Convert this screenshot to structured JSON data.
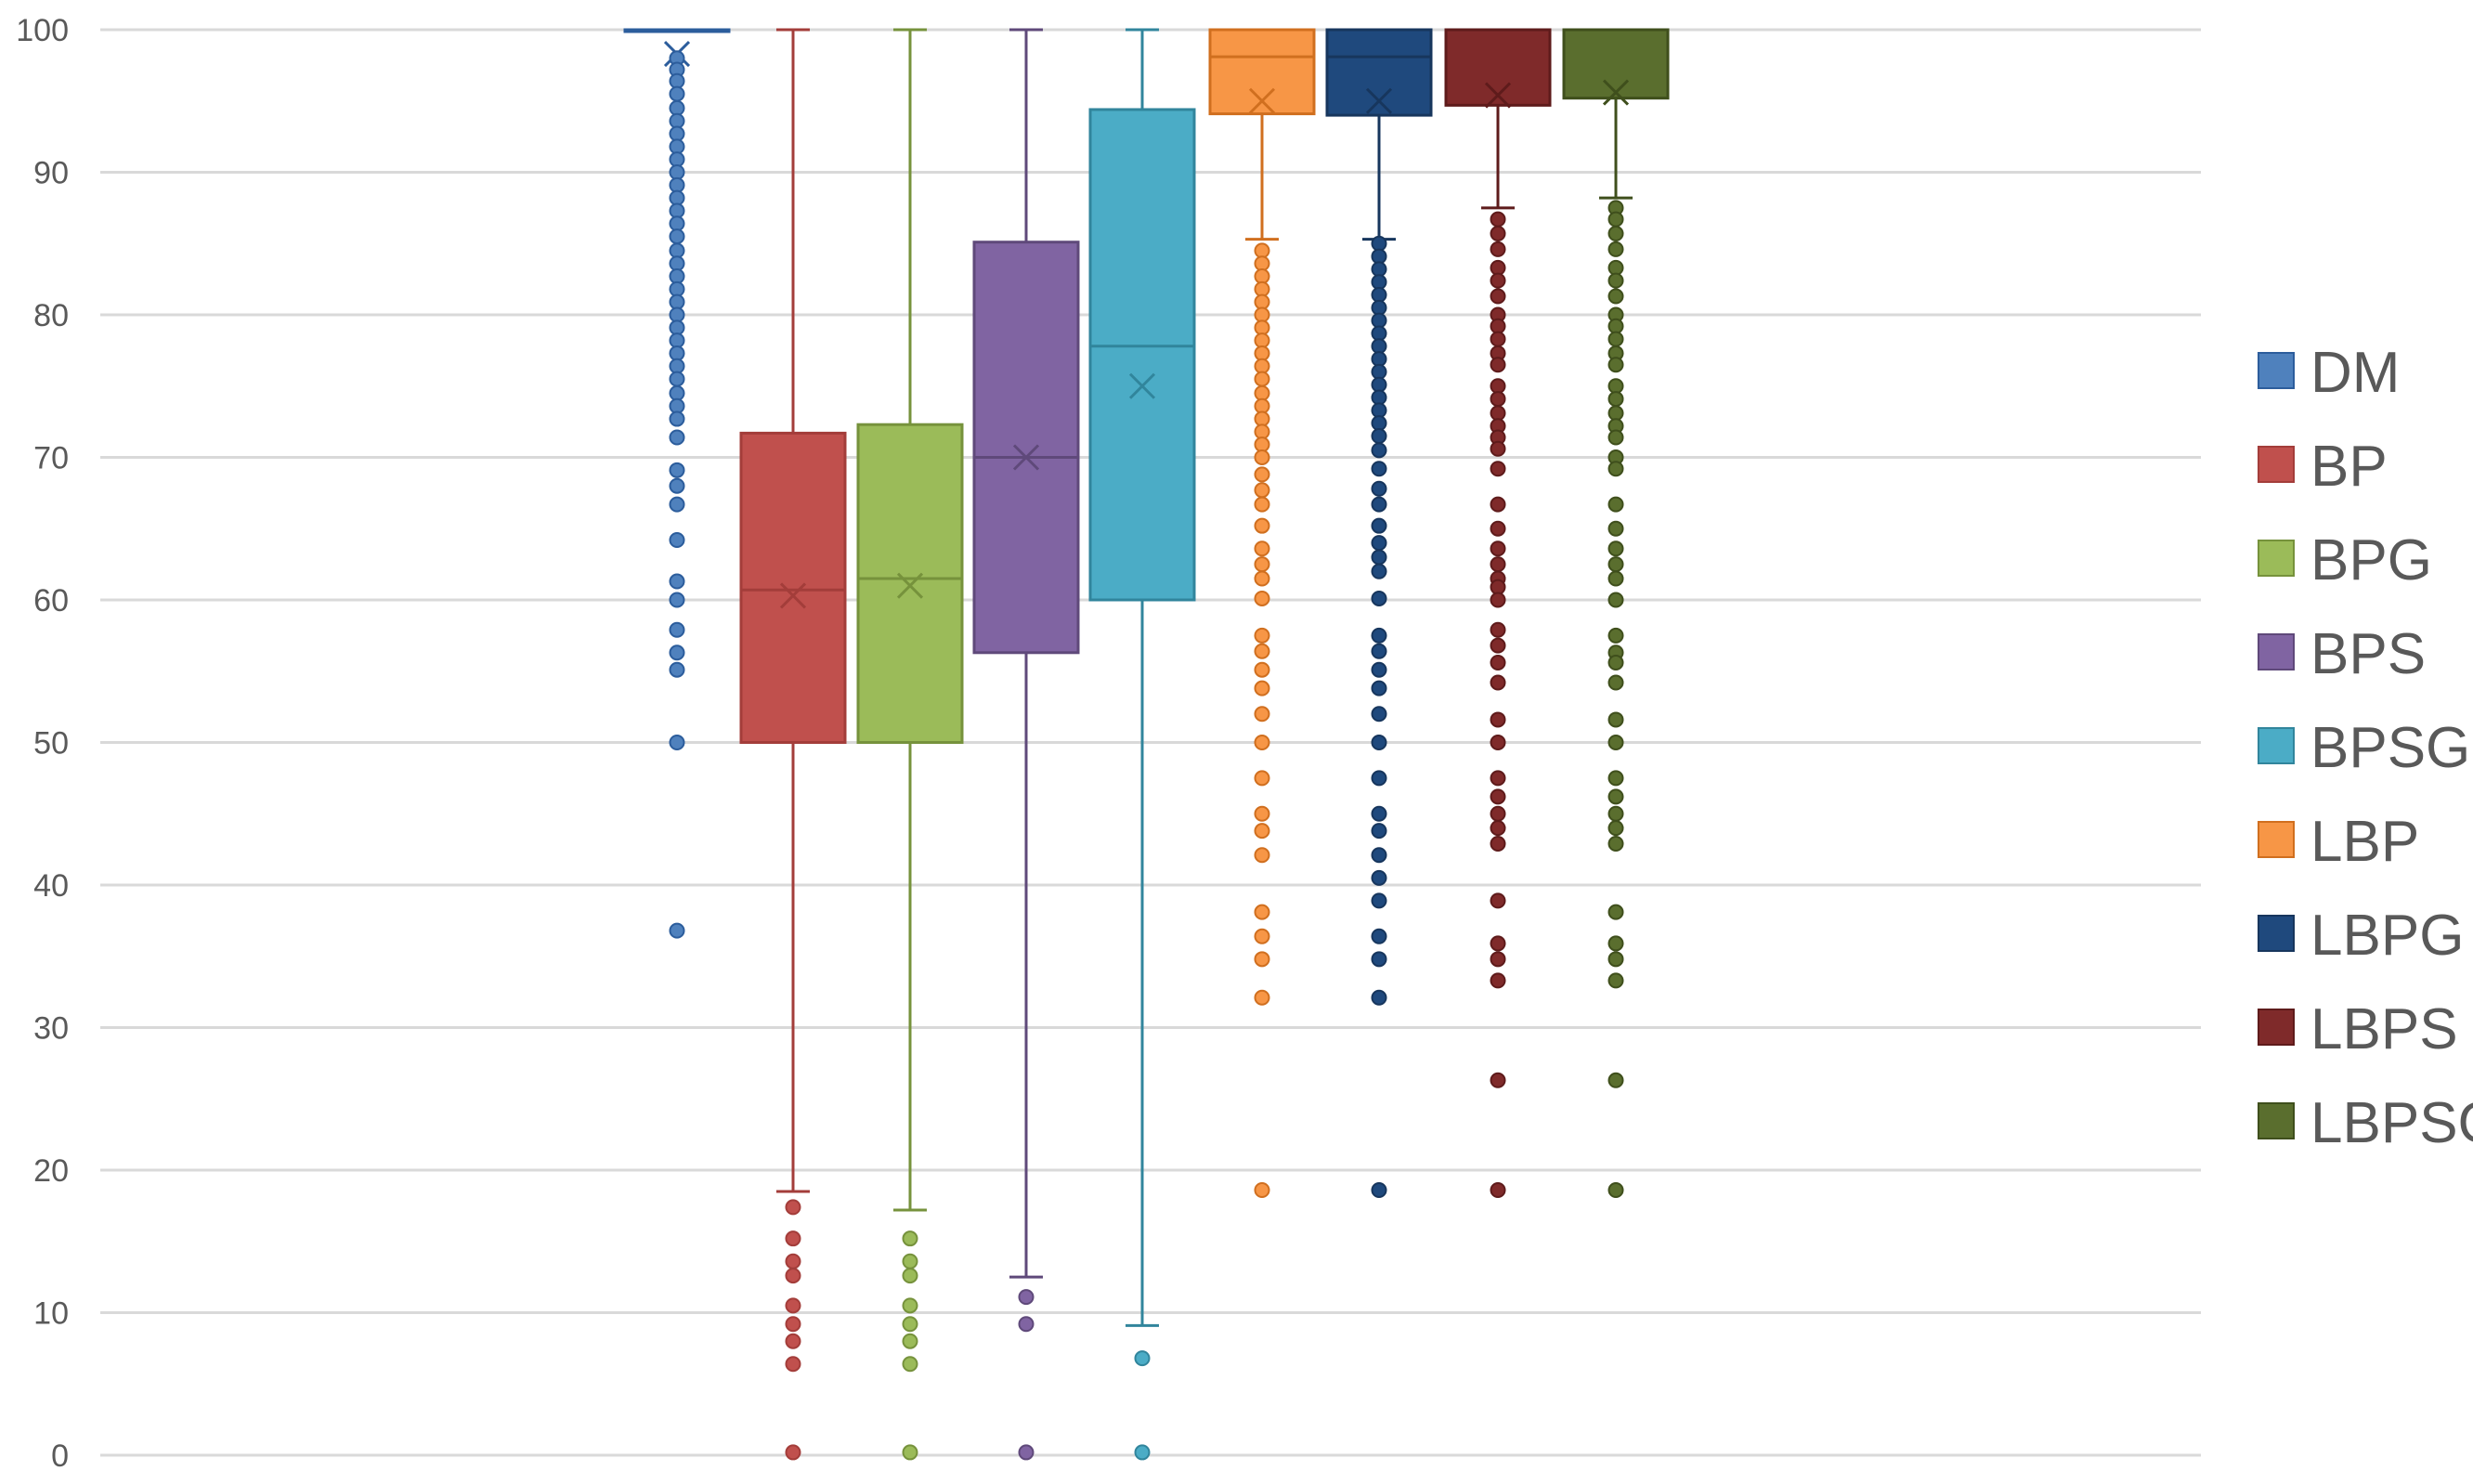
{
  "chart_data": {
    "type": "box",
    "title": "",
    "xlabel": "",
    "ylabel": "",
    "ylim": [
      0,
      100
    ],
    "yticks": [
      0,
      10,
      20,
      30,
      40,
      50,
      60,
      70,
      80,
      90,
      100
    ],
    "grid": true,
    "legend_position": "right",
    "series": [
      {
        "name": "DM",
        "color": "#4f81bd",
        "dark": "#2c5d9c",
        "q1": 100,
        "median": 100,
        "q3": 100,
        "whisker_low": 100,
        "whisker_high": 100,
        "mean": 98.3,
        "outliers": [
          98,
          97.2,
          96.4,
          95.5,
          94.5,
          93.6,
          92.7,
          91.8,
          90.9,
          90,
          89.1,
          88.2,
          87.3,
          86.4,
          85.5,
          84.5,
          83.6,
          82.7,
          81.8,
          80.9,
          80,
          79.1,
          78.2,
          77.3,
          76.4,
          75.5,
          74.5,
          73.6,
          72.7,
          71.4,
          69.1,
          68,
          66.7,
          64.2,
          61.3,
          60,
          57.9,
          56.3,
          55.1,
          50,
          36.8
        ]
      },
      {
        "name": "BP",
        "color": "#c0504d",
        "dark": "#a33d3a",
        "q1": 50,
        "median": 60.7,
        "q3": 71.7,
        "whisker_low": 18.5,
        "whisker_high": 100,
        "mean": 60.3,
        "outliers": [
          17.4,
          15.2,
          13.6,
          12.6,
          10.5,
          9.2,
          8,
          6.4,
          0.2
        ]
      },
      {
        "name": "BPG",
        "color": "#9bbb59",
        "dark": "#76923c",
        "q1": 50,
        "median": 61.5,
        "q3": 72.3,
        "whisker_low": 17.2,
        "whisker_high": 100,
        "mean": 61,
        "outliers": [
          15.2,
          13.6,
          12.6,
          10.5,
          9.2,
          8,
          6.4,
          0.2
        ]
      },
      {
        "name": "BPS",
        "color": "#8064a2",
        "dark": "#5f497a",
        "q1": 56.3,
        "median": 70,
        "q3": 85.1,
        "whisker_low": 12.5,
        "whisker_high": 100,
        "mean": 70,
        "outliers": [
          11.1,
          9.2,
          0.2
        ]
      },
      {
        "name": "BPSG",
        "color": "#4bacc6",
        "dark": "#31859c",
        "q1": 60,
        "median": 77.8,
        "q3": 94.4,
        "whisker_low": 9.1,
        "whisker_high": 100,
        "mean": 75,
        "outliers": [
          6.8,
          0.2
        ]
      },
      {
        "name": "LBP",
        "color": "#f79646",
        "dark": "#d06f1f",
        "q1": 94.1,
        "median": 98.1,
        "q3": 100,
        "whisker_low": 85.3,
        "whisker_high": 100,
        "mean": 95,
        "outliers": [
          84.5,
          83.6,
          82.7,
          81.8,
          80.9,
          80,
          79.1,
          78.2,
          77.3,
          76.4,
          75.5,
          74.5,
          73.6,
          72.7,
          71.8,
          70.9,
          70,
          68.8,
          67.7,
          66.7,
          65.2,
          63.6,
          62.5,
          61.5,
          60.1,
          57.5,
          56.4,
          55.1,
          53.8,
          52,
          50,
          47.5,
          45,
          43.8,
          42.1,
          38.1,
          36.4,
          34.8,
          32.1,
          18.6
        ]
      },
      {
        "name": "LBPG",
        "color": "#1f497d",
        "dark": "#17365d",
        "q1": 94,
        "median": 98.1,
        "q3": 100,
        "whisker_low": 85.3,
        "whisker_high": 100,
        "mean": 95,
        "outliers": [
          85,
          84.1,
          83.2,
          82.3,
          81.4,
          80.5,
          79.6,
          78.7,
          77.8,
          76.9,
          76,
          75.1,
          74.2,
          73.3,
          72.4,
          71.5,
          70.5,
          69.2,
          67.8,
          66.7,
          65.2,
          64,
          63,
          62,
          60.1,
          57.5,
          56.4,
          55.1,
          53.8,
          52,
          50,
          47.5,
          45,
          43.8,
          42.1,
          40.5,
          38.9,
          36.4,
          34.8,
          32.1,
          18.6
        ]
      },
      {
        "name": "LBPS",
        "color": "#7f2a2a",
        "dark": "#5e1b1b",
        "q1": 94.7,
        "median": 100,
        "q3": 100,
        "whisker_low": 87.5,
        "whisker_high": 100,
        "mean": 95.4,
        "outliers": [
          86.7,
          85.7,
          84.6,
          83.3,
          82.4,
          81.3,
          80,
          79.2,
          78.3,
          77.3,
          76.5,
          75,
          74.1,
          73.1,
          72.2,
          71.4,
          70.6,
          69.2,
          66.7,
          65,
          63.6,
          62.5,
          61.5,
          60.9,
          60,
          57.9,
          56.8,
          55.6,
          54.2,
          51.6,
          50,
          47.5,
          46.2,
          45,
          44,
          42.9,
          38.9,
          35.9,
          34.8,
          33.3,
          26.3,
          18.6
        ]
      },
      {
        "name": "LBPSG",
        "color": "#5a6e2e",
        "dark": "#3f4f1c",
        "q1": 95.2,
        "median": 100,
        "q3": 100,
        "whisker_low": 88.2,
        "whisker_high": 100,
        "mean": 95.6,
        "outliers": [
          87.5,
          86.7,
          85.7,
          84.6,
          83.3,
          82.4,
          81.3,
          80,
          79.2,
          78.3,
          77.3,
          76.5,
          75,
          74.1,
          73.1,
          72.2,
          71.4,
          70,
          69.2,
          66.7,
          65,
          63.6,
          62.5,
          61.5,
          60,
          57.5,
          56.3,
          55.6,
          54.2,
          51.6,
          50,
          47.5,
          46.2,
          45,
          44,
          42.9,
          38.1,
          35.9,
          34.8,
          33.3,
          26.3,
          18.6
        ]
      }
    ]
  }
}
